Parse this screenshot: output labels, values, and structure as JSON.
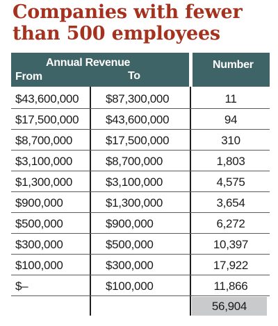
{
  "title": "Companies with fewer than 500 employees",
  "header": {
    "annual_revenue": "Annual Revenue",
    "from": "From",
    "to": "To",
    "number": "Number"
  },
  "rows": [
    {
      "from": "$43,600,000",
      "to": "$87,300,000",
      "number": "11"
    },
    {
      "from": "$17,500,000",
      "to": "$43,600,000",
      "number": "94"
    },
    {
      "from": "$8,700,000",
      "to": "$17,500,000",
      "number": "310"
    },
    {
      "from": "$3,100,000",
      "to": "$8,700,000",
      "number": "1,803"
    },
    {
      "from": "$1,300,000",
      "to": "$3,100,000",
      "number": "4,575"
    },
    {
      "from": "$900,000",
      "to": "$1,300,000",
      "number": "3,654"
    },
    {
      "from": "$500,000",
      "to": "$900,000",
      "number": "6,272"
    },
    {
      "from": "$300,000",
      "to": "$500,000",
      "number": "10,397"
    },
    {
      "from": "$100,000",
      "to": "$300,000",
      "number": "17,922"
    },
    {
      "from": "$–",
      "to": "$100,000",
      "number": "11,866"
    }
  ],
  "total": "56,904",
  "colors": {
    "title": "#a5321f",
    "header_bg": "#3f6467",
    "total_bg": "#c9cacb"
  }
}
